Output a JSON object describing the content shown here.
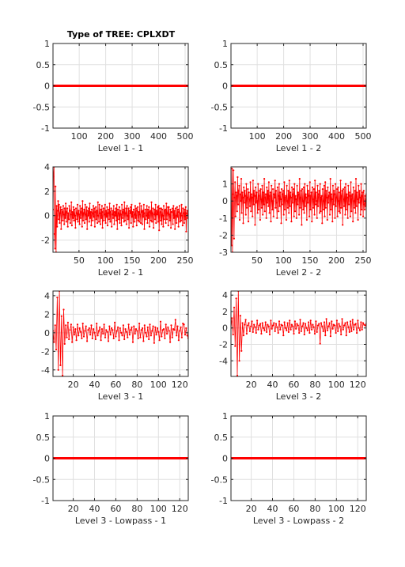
{
  "figure": {
    "title": "Type of TREE: CPLXDT",
    "series_color": "#ff0000"
  },
  "chart_data": [
    {
      "type": "line",
      "title": "Type of TREE: CPLXDT",
      "xlabel": "Level 1 - 1",
      "xlim": [
        1,
        512
      ],
      "ylim": [
        -1,
        1
      ],
      "xticks": [
        100,
        200,
        300,
        400,
        500
      ],
      "yticks": [
        -1,
        -0.5,
        0,
        0.5,
        1
      ],
      "grid": true,
      "markers": false,
      "const": 0
    },
    {
      "type": "line",
      "title": "",
      "xlabel": "Level 1 - 2",
      "xlim": [
        1,
        512
      ],
      "ylim": [
        -1,
        1
      ],
      "xticks": [
        100,
        200,
        300,
        400,
        500
      ],
      "yticks": [
        -1,
        -0.5,
        0,
        0.5,
        1
      ],
      "grid": true,
      "markers": false,
      "const": 0
    },
    {
      "type": "line",
      "title": "",
      "xlabel": "Level 2 - 1",
      "xlim": [
        1,
        256
      ],
      "ylim": [
        -3,
        4
      ],
      "xticks": [
        50,
        100,
        150,
        200,
        250
      ],
      "yticks": [
        -2,
        0,
        2,
        4
      ],
      "grid": true,
      "markers": true,
      "values": [
        0.5,
        3.2,
        4.0,
        -1.5,
        -2.7,
        2.4,
        -3.0,
        0.8,
        -0.9,
        0.4,
        1.2,
        -0.3,
        0.9,
        -0.6,
        0.2,
        0.7,
        -1.1,
        0.5,
        0.3,
        -0.4,
        0.8,
        0.1,
        -0.7,
        0.6,
        -0.2,
        1.0,
        -0.5,
        0.3,
        0.6,
        -0.9,
        0.2,
        -0.3,
        0.8,
        0.4,
        -0.6,
        0.1,
        1.1,
        -0.8,
        0.3,
        -0.2,
        0.7,
        -0.4,
        0.5,
        0.0,
        -1.0,
        0.6,
        0.2,
        -0.3,
        0.9,
        -0.5,
        0.4,
        0.1,
        -0.7,
        0.8,
        -0.2,
        0.3,
        0.6,
        -0.9,
        1.2,
        -0.4,
        0.2,
        0.5,
        -0.6,
        0.9,
        0.1,
        -0.3,
        0.7,
        -1.1,
        0.4,
        0.0,
        0.6,
        -0.5,
        1.0,
        -0.2,
        0.3,
        -0.8,
        0.5,
        0.2,
        -0.4,
        0.8,
        -0.1,
        0.6,
        -0.9,
        0.3,
        0.7,
        -0.3,
        0.4,
        -0.6,
        1.1,
        0.0,
        -0.5,
        0.9,
        0.2,
        -0.7,
        0.5,
        -0.2,
        0.8,
        -1.0,
        0.3,
        0.6,
        -0.4,
        0.1,
        0.9,
        -0.6,
        0.4,
        -0.1,
        0.7,
        -0.8,
        0.2,
        0.5,
        -0.3,
        1.0,
        -0.5,
        0.3,
        0.6,
        -0.9,
        0.1,
        0.4,
        -0.2,
        0.8,
        -0.7,
        0.3,
        0.0,
        0.6,
        -0.4,
        0.9,
        -1.1,
        0.5,
        0.2,
        -0.3,
        0.7,
        -0.6,
        0.4,
        0.1,
        -0.8,
        0.9,
        -0.2,
        0.3,
        0.5,
        -0.5,
        1.1,
        -0.4,
        0.2,
        0.6,
        -0.7,
        0.8,
        0.0,
        -0.3,
        0.6,
        -1.0,
        0.4,
        0.2,
        0.7,
        -0.6,
        0.9,
        -0.1,
        0.3,
        -0.9,
        0.5,
        0.1,
        -0.5,
        0.8,
        -0.2,
        0.6,
        -0.8,
        0.4,
        0.7,
        -0.4,
        0.3,
        -0.5,
        1.0,
        0.1,
        -0.6,
        0.8,
        0.3,
        -0.7,
        0.4,
        -0.1,
        0.9,
        -1.1,
        0.2,
        0.5,
        -0.3,
        0.0,
        0.8,
        -0.6,
        0.5,
        -0.2,
        0.7,
        -0.9,
        0.3,
        0.4,
        -0.4,
        1.1,
        -0.5,
        0.2,
        0.6,
        -1.0,
        0.1,
        0.5,
        -0.3,
        0.9,
        -0.6,
        0.4,
        0.1,
        0.7,
        -0.5,
        0.8,
        -1.2,
        0.6,
        0.3,
        -0.4,
        0.6,
        -0.7,
        0.5,
        0.0,
        -0.9,
        0.8,
        -0.3,
        0.4,
        0.5,
        -0.6,
        1.0,
        -0.3,
        0.2,
        0.7,
        -0.8,
        0.7,
        0.1,
        -0.4,
        0.5,
        -1.0,
        0.3,
        0.3,
        0.6,
        -0.7,
        0.8,
        -0.2,
        0.4,
        -1.1,
        0.6,
        0.0,
        -0.6,
        0.7,
        -0.1,
        0.5,
        -0.9,
        0.3,
        0.8,
        -0.5,
        0.2,
        -0.4,
        0.9,
        0.0,
        -0.8,
        0.6,
        0.2,
        -0.6,
        0.5,
        -0.3,
        0.7,
        -1.3,
        0.2,
        0.4,
        -0.2,
        0.1
      ]
    },
    {
      "type": "line",
      "title": "",
      "xlabel": "Level 2 - 2",
      "xlim": [
        1,
        256
      ],
      "ylim": [
        -3,
        2
      ],
      "xticks": [
        50,
        100,
        150,
        200,
        250
      ],
      "yticks": [
        -3,
        -2,
        -1,
        0,
        1
      ],
      "grid": true,
      "markers": true,
      "values": [
        -1.5,
        -2.6,
        1.9,
        -3.0,
        0.4,
        1.8,
        -2.2,
        0.2,
        1.1,
        -0.9,
        0.5,
        0.3,
        -0.6,
        1.4,
        -0.2,
        0.6,
        0.9,
        -1.1,
        0.4,
        0.0,
        1.3,
        -0.7,
        0.5,
        0.2,
        -1.3,
        0.8,
        -0.1,
        0.6,
        0.3,
        -0.8,
        1.0,
        -0.4,
        0.2,
        0.7,
        -1.2,
        0.5,
        0.1,
        -0.3,
        1.1,
        -0.6,
        0.4,
        0.2,
        -0.9,
        1.2,
        -0.2,
        0.6,
        0.3,
        -1.4,
        0.8,
        -0.1,
        0.5,
        0.0,
        -0.7,
        1.0,
        -0.5,
        0.3,
        0.6,
        -1.1,
        0.7,
        0.1,
        -0.4,
        0.9,
        -0.8,
        0.5,
        -0.2,
        1.3,
        -0.6,
        0.2,
        0.4,
        -1.0,
        0.8,
        -0.1,
        0.6,
        -0.3,
        1.1,
        -0.7,
        0.3,
        0.5,
        -1.2,
        0.9,
        0.0,
        -0.5,
        0.7,
        -0.9,
        0.4,
        0.2,
        1.2,
        -0.4,
        0.6,
        -0.1,
        -1.0,
        0.8,
        0.3,
        -0.6,
        1.0,
        -0.3,
        0.5,
        0.1,
        -1.3,
        0.7,
        -0.2,
        0.4,
        0.6,
        -0.8,
        1.1,
        -0.5,
        0.2,
        0.3,
        -1.1,
        0.9,
        0.0,
        -0.4,
        0.6,
        -0.7,
        1.2,
        -0.3,
        0.5,
        0.2,
        -1.2,
        0.8,
        -0.1,
        0.4,
        0.7,
        -0.9,
        1.0,
        -0.6,
        0.3,
        0.1,
        -1.0,
        0.9,
        -0.2,
        0.5,
        0.4,
        -0.8,
        1.3,
        -0.4,
        0.2,
        0.6,
        -1.4,
        0.7,
        0.0,
        -0.5,
        0.8,
        -0.7,
        1.0,
        -0.3,
        0.4,
        0.2,
        -1.1,
        0.9,
        -0.1,
        0.6,
        0.3,
        -0.9,
        1.1,
        -0.5,
        0.3,
        0.5,
        -1.2,
        0.8,
        0.1,
        -0.4,
        0.7,
        -0.8,
        1.2,
        -0.2,
        0.5,
        0.0,
        -1.0,
        0.9,
        -0.3,
        0.4,
        0.6,
        -0.7,
        1.0,
        -0.6,
        0.2,
        0.3,
        -1.3,
        0.7,
        0.0,
        -0.5,
        0.9,
        -0.9,
        1.1,
        -0.4,
        0.6,
        0.2,
        -1.1,
        0.8,
        -0.1,
        0.3,
        0.5,
        -0.8,
        1.3,
        -0.5,
        0.4,
        0.1,
        -1.2,
        0.9,
        -0.2,
        0.6,
        0.4,
        -1.0,
        1.0,
        -0.3,
        0.2,
        0.7,
        -0.9,
        0.8,
        0.0,
        -0.6,
        0.5,
        -0.7,
        1.2,
        -0.4,
        0.3,
        0.6,
        -1.4,
        0.7,
        0.1,
        -0.3,
        0.8,
        -0.8,
        1.0,
        -0.5,
        0.4,
        0.2,
        -1.0,
        0.9,
        -0.2,
        0.5,
        0.3,
        -0.9,
        1.1,
        -0.6,
        0.3,
        0.4,
        -1.2,
        0.8,
        0.0,
        -0.4,
        0.6,
        -0.7,
        1.3,
        -0.3,
        0.5,
        0.1,
        -1.1,
        0.9,
        -0.1,
        0.6,
        0.2,
        -0.8,
        1.0,
        -0.5,
        0.3,
        0.5,
        -0.9,
        0.6,
        -0.2,
        -0.5,
        0.3,
        -0.3,
        0.4
      ]
    },
    {
      "type": "line",
      "title": "",
      "xlabel": "Level 3 - 1",
      "xlim": [
        1,
        128
      ],
      "ylim": [
        -4.7,
        4.5
      ],
      "xticks": [
        20,
        40,
        60,
        80,
        100,
        120
      ],
      "yticks": [
        -4,
        -2,
        0,
        2,
        4
      ],
      "grid": true,
      "markers": true,
      "values": [
        0.2,
        -1.0,
        0.8,
        -1.8,
        3.8,
        -4.0,
        4.5,
        -3.5,
        1.8,
        -4.6,
        2.5,
        -1.2,
        0.8,
        -0.5,
        1.1,
        -0.7,
        0.3,
        0.9,
        -1.0,
        0.6,
        -0.2,
        0.4,
        -0.8,
        0.9,
        -0.3,
        0.5,
        0.1,
        -0.6,
        1.0,
        -0.4,
        0.2,
        0.7,
        -0.9,
        0.3,
        0.5,
        -0.2,
        0.8,
        -0.6,
        0.4,
        0.0,
        -0.7,
        1.0,
        -0.3,
        0.2,
        0.6,
        -0.8,
        0.4,
        -0.1,
        0.9,
        -0.5,
        0.3,
        0.1,
        -0.9,
        0.7,
        -0.2,
        0.5,
        0.3,
        -0.6,
        1.1,
        -0.4,
        0.2,
        0.6,
        -0.8,
        0.5,
        0.0,
        -0.3,
        0.8,
        -0.7,
        0.4,
        0.1,
        -0.5,
        0.9,
        -0.2,
        0.3,
        0.6,
        -1.0,
        0.7,
        -0.1,
        0.4,
        0.2,
        -0.6,
        1.0,
        -0.5,
        0.3,
        0.5,
        -0.9,
        0.8,
        0.0,
        -0.4,
        0.6,
        -0.7,
        0.9,
        -0.3,
        0.2,
        0.7,
        -1.1,
        0.6,
        -0.2,
        0.5,
        0.1,
        -0.8,
        1.2,
        -0.4,
        0.3,
        0.4,
        -0.6,
        0.9,
        -0.1,
        0.6,
        0.2,
        -1.0,
        0.8,
        -0.5,
        0.4,
        0.3,
        1.4,
        -0.3,
        0.7,
        -0.8,
        0.2,
        0.6,
        -0.5,
        1.0,
        0.9,
        -0.2,
        0.5,
        -0.3,
        -0.6
      ]
    },
    {
      "type": "line",
      "title": "",
      "xlabel": "Level 3 - 2",
      "xlim": [
        1,
        128
      ],
      "ylim": [
        -5.9,
        4.5
      ],
      "xticks": [
        20,
        40,
        60,
        80,
        100,
        120
      ],
      "yticks": [
        -4,
        -2,
        0,
        2,
        4
      ],
      "grid": true,
      "markers": true,
      "values": [
        0.0,
        1.2,
        -0.8,
        2.5,
        -2.2,
        3.6,
        -5.8,
        4.5,
        -4.0,
        1.5,
        -2.8,
        0.6,
        -0.9,
        0.4,
        1.0,
        -0.7,
        0.3,
        0.6,
        -0.4,
        0.2,
        0.8,
        -0.5,
        0.4,
        0.1,
        -0.6,
        0.9,
        -0.2,
        0.3,
        0.5,
        -0.7,
        0.6,
        0.0,
        -0.3,
        0.7,
        -0.5,
        0.4,
        0.2,
        -0.8,
        0.9,
        -0.1,
        0.3,
        0.6,
        -0.4,
        0.5,
        0.1,
        -0.6,
        0.8,
        -0.2,
        0.4,
        0.3,
        -0.9,
        0.7,
        0.0,
        -0.3,
        0.6,
        -0.5,
        0.9,
        -0.2,
        0.4,
        0.2,
        -0.7,
        0.8,
        -0.1,
        0.5,
        0.3,
        -0.6,
        1.0,
        -0.4,
        0.2,
        0.6,
        -0.8,
        0.5,
        0.0,
        -0.3,
        0.7,
        -0.6,
        0.9,
        -0.2,
        0.4,
        0.1,
        -0.7,
        0.8,
        -0.5,
        0.3,
        0.5,
        -1.9,
        0.6,
        0.2,
        -0.4,
        0.7,
        -0.9,
        1.1,
        -0.3,
        0.2,
        0.6,
        -1.0,
        0.8,
        -0.1,
        0.4,
        0.3,
        -0.6,
        0.9,
        -0.4,
        0.5,
        0.2,
        -0.8,
        1.1,
        -0.2,
        0.3,
        0.6,
        -0.9,
        0.7,
        0.1,
        -0.5,
        0.8,
        -0.4,
        1.0,
        -0.2,
        0.4,
        0.5,
        -0.6,
        0.9,
        0.0,
        -0.3,
        0.7,
        -0.2,
        0.6,
        0.4,
        0.3,
        0.5
      ]
    },
    {
      "type": "line",
      "title": "",
      "xlabel": "Level 3 - Lowpass - 1",
      "xlim": [
        1,
        128
      ],
      "ylim": [
        -1,
        1
      ],
      "xticks": [
        20,
        40,
        60,
        80,
        100,
        120
      ],
      "yticks": [
        -1,
        -0.5,
        0,
        0.5,
        1
      ],
      "grid": true,
      "markers": false,
      "const": 0
    },
    {
      "type": "line",
      "title": "",
      "xlabel": "Level 3 - Lowpass - 2",
      "xlim": [
        1,
        128
      ],
      "ylim": [
        -1,
        1
      ],
      "xticks": [
        20,
        40,
        60,
        80,
        100,
        120
      ],
      "yticks": [
        -1,
        -0.5,
        0,
        0.5,
        1
      ],
      "grid": true,
      "markers": false,
      "const": 0
    }
  ]
}
